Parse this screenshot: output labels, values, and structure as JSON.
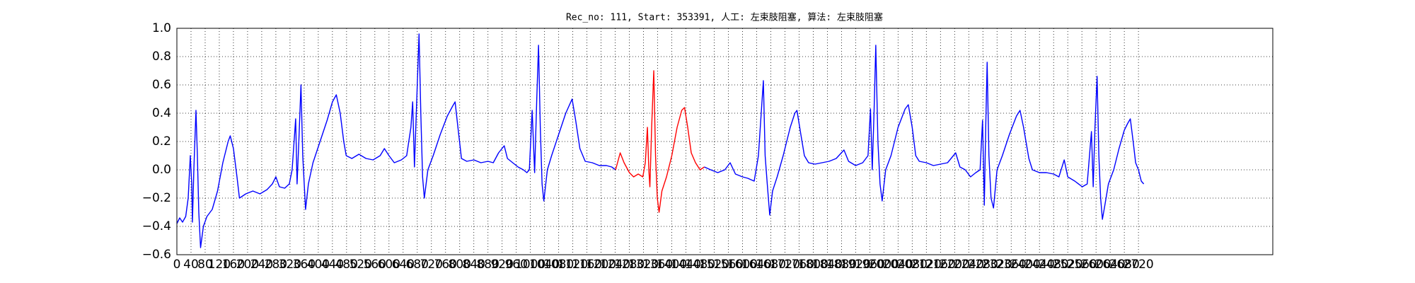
{
  "chart_data": {
    "type": "line",
    "title": "Rec_no: 111, Start: 353391, 人工: 左束肢阻塞, 算法: 左束肢阻塞",
    "xlim": [
      0,
      3100
    ],
    "xticks": [
      0,
      40,
      80,
      120,
      160,
      200,
      240,
      280,
      320,
      360,
      400,
      440,
      480,
      520,
      560,
      600,
      640,
      680,
      720,
      760,
      800,
      840,
      880,
      920,
      960,
      1000,
      1040,
      1080,
      1120,
      1160,
      1200,
      1240,
      1280,
      1320,
      1360,
      1400,
      1440,
      1480,
      1520,
      1560,
      1600,
      1640,
      1680,
      1720,
      1760,
      1800,
      1840,
      1880,
      1920,
      1960,
      2000,
      2040,
      2080,
      2120,
      2160,
      2200,
      2240,
      2280,
      2320,
      2360,
      2400,
      2440,
      2480,
      2520,
      2560,
      2600,
      2640,
      2680,
      2720
    ],
    "ylim": [
      -0.6,
      1.0
    ],
    "yticks": [
      {
        "value": 1.0,
        "label": "1.0"
      },
      0.8,
      0.6,
      0.4,
      0.2,
      {
        "value": 0,
        "label": "0.0"
      },
      {
        "value": -0.2,
        "label": "−0.2"
      },
      {
        "value": -0.4,
        "label": "−0.4"
      },
      {
        "value": -0.6,
        "label": "−0.6"
      }
    ],
    "grid": true,
    "series": [
      {
        "color": "#0000ff",
        "x": [
          0,
          8,
          16,
          25,
          32,
          38,
          42,
          44,
          48,
          54,
          58,
          62,
          67,
          75,
          85,
          100,
          115,
          130,
          145,
          151,
          160,
          170,
          177,
          195,
          215,
          235,
          255,
          270,
          280,
          290,
          305,
          318,
          326,
          336,
          340,
          345,
          351,
          356,
          364,
          372,
          385,
          405,
          425,
          440,
          451,
          462,
          472,
          479,
          495,
          515,
          535,
          555,
          575,
          587,
          600,
          615,
          635,
          650,
          662,
          667,
          672,
          680,
          685,
          690,
          695,
          700,
          710,
          725,
          745,
          765,
          780,
          787,
          795,
          805,
          820,
          840,
          860,
          880,
          895,
          910,
          926,
          935,
          950,
          965,
          980,
          990,
          997,
          1005,
          1012,
          1018,
          1023,
          1028,
          1033,
          1038,
          1048,
          1060,
          1080,
          1100,
          1118,
          1128,
          1140,
          1155,
          1175,
          1195,
          1215,
          1230,
          1241
        ],
        "values": [
          -0.38,
          -0.34,
          -0.37,
          -0.33,
          -0.2,
          0.1,
          -0.1,
          -0.37,
          0.0,
          0.42,
          0.1,
          -0.3,
          -0.55,
          -0.4,
          -0.33,
          -0.28,
          -0.15,
          0.05,
          0.2,
          0.24,
          0.15,
          -0.05,
          -0.2,
          -0.17,
          -0.15,
          -0.17,
          -0.14,
          -0.1,
          -0.05,
          -0.12,
          -0.13,
          -0.1,
          0.0,
          0.36,
          -0.1,
          0.2,
          0.6,
          0.1,
          -0.28,
          -0.1,
          0.05,
          0.2,
          0.35,
          0.48,
          0.53,
          0.4,
          0.2,
          0.1,
          0.08,
          0.11,
          0.08,
          0.07,
          0.1,
          0.15,
          0.1,
          0.05,
          0.07,
          0.1,
          0.3,
          0.48,
          0.02,
          0.6,
          0.96,
          0.4,
          -0.05,
          -0.2,
          0.0,
          0.1,
          0.25,
          0.38,
          0.45,
          0.48,
          0.3,
          0.08,
          0.06,
          0.07,
          0.05,
          0.06,
          0.05,
          0.12,
          0.17,
          0.08,
          0.05,
          0.02,
          0.0,
          -0.02,
          0.0,
          0.42,
          -0.02,
          0.5,
          0.88,
          0.3,
          -0.1,
          -0.22,
          0.0,
          0.1,
          0.25,
          0.4,
          0.5,
          0.35,
          0.15,
          0.06,
          0.05,
          0.03,
          0.03,
          0.02,
          0.0
        ]
      },
      {
        "color": "#ff0000",
        "x": [
          1241,
          1254,
          1265,
          1280,
          1292,
          1305,
          1318,
          1325,
          1331,
          1335,
          1338,
          1343,
          1349,
          1354,
          1359,
          1364,
          1372,
          1385,
          1400,
          1415,
          1428,
          1436,
          1445,
          1455,
          1467,
          1480,
          1492
        ],
        "values": [
          0.0,
          0.12,
          0.05,
          -0.02,
          -0.05,
          -0.03,
          -0.05,
          0.05,
          0.3,
          0.0,
          -0.12,
          0.3,
          0.7,
          0.1,
          -0.2,
          -0.3,
          -0.15,
          -0.05,
          0.1,
          0.3,
          0.42,
          0.44,
          0.3,
          0.12,
          0.05,
          0.0,
          0.02
        ]
      },
      {
        "color": "#0000ff",
        "x": [
          1492,
          1510,
          1530,
          1550,
          1565,
          1580,
          1600,
          1615,
          1633,
          1645,
          1659,
          1664,
          1670,
          1677,
          1685,
          1698,
          1715,
          1735,
          1748,
          1754,
          1765,
          1775,
          1787,
          1805,
          1825,
          1845,
          1865,
          1887,
          1900,
          1920,
          1940,
          1955,
          1962,
          1967,
          1972,
          1977,
          1983,
          1989,
          1995,
          2005,
          2020,
          2040,
          2060,
          2069,
          2080,
          2090,
          2100,
          2120,
          2140,
          2160,
          2180,
          2203,
          2215,
          2230,
          2245,
          2260,
          2272,
          2279,
          2284,
          2288,
          2292,
          2297,
          2303,
          2310,
          2320,
          2335,
          2355,
          2375,
          2385,
          2395,
          2410,
          2420,
          2440,
          2460,
          2480,
          2495,
          2510,
          2520,
          2540,
          2561,
          2575,
          2587,
          2592,
          2597,
          2603,
          2608,
          2613,
          2618,
          2625,
          2635,
          2650,
          2665,
          2680,
          2690,
          2697,
          2705,
          2712,
          2720,
          2728,
          2735
        ],
        "values": [
          0.02,
          0.0,
          -0.02,
          0.0,
          0.05,
          -0.03,
          -0.05,
          -0.06,
          -0.08,
          0.1,
          0.63,
          0.1,
          -0.1,
          -0.32,
          -0.15,
          -0.05,
          0.1,
          0.3,
          0.4,
          0.42,
          0.25,
          0.1,
          0.05,
          0.04,
          0.05,
          0.06,
          0.08,
          0.14,
          0.06,
          0.03,
          0.05,
          0.1,
          0.43,
          0.0,
          0.4,
          0.88,
          0.2,
          -0.1,
          -0.22,
          0.0,
          0.1,
          0.3,
          0.43,
          0.46,
          0.3,
          0.1,
          0.06,
          0.05,
          0.03,
          0.04,
          0.05,
          0.12,
          0.02,
          0.0,
          -0.05,
          -0.02,
          0.0,
          0.35,
          -0.25,
          0.3,
          0.76,
          0.1,
          -0.2,
          -0.27,
          0.0,
          0.1,
          0.25,
          0.38,
          0.42,
          0.3,
          0.08,
          0.0,
          -0.02,
          -0.02,
          -0.03,
          -0.05,
          0.07,
          -0.05,
          -0.08,
          -0.12,
          -0.1,
          0.27,
          -0.12,
          0.3,
          0.66,
          0.1,
          -0.2,
          -0.35,
          -0.25,
          -0.1,
          0.0,
          0.15,
          0.28,
          0.33,
          0.36,
          0.2,
          0.05,
          0.0,
          -0.08,
          -0.1
        ]
      }
    ]
  }
}
